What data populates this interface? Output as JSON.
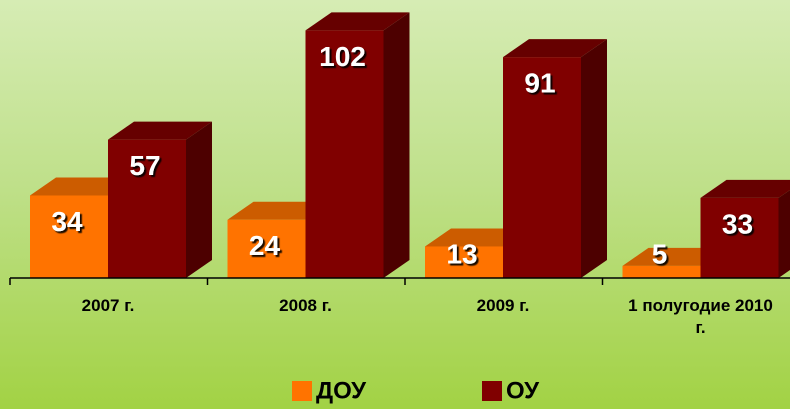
{
  "chart_data": {
    "type": "bar3d",
    "categories": [
      "2007 г.",
      "2008 г.",
      "2009 г.",
      "1 полугодие 2010 г."
    ],
    "series": [
      {
        "name": "ДОУ",
        "color": "#ff7300",
        "values": [
          34,
          24,
          13,
          5
        ]
      },
      {
        "name": "ОУ",
        "color": "#800000",
        "values": [
          57,
          102,
          91,
          33
        ]
      }
    ],
    "ylim": [
      0,
      110
    ]
  }
}
